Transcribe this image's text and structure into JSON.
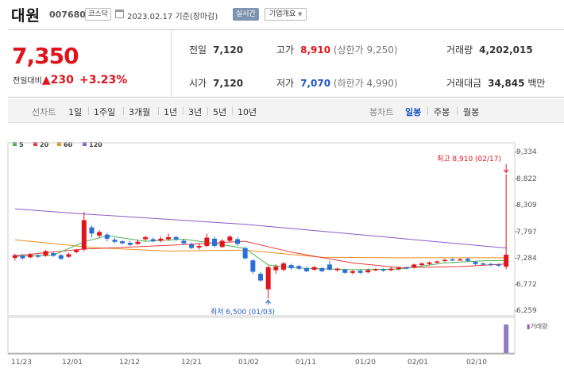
{
  "header": {
    "name": "대원",
    "code": "007680",
    "market": "코스닥",
    "date": "2023.02.17 기준(장마감)",
    "live": "실시간",
    "company_info": "기업개요"
  },
  "price": {
    "current": "7,350",
    "change_label": "전일대비",
    "change": "230",
    "change_pct": "+3.23%"
  },
  "stats": {
    "prev_label": "전일",
    "prev": "7,120",
    "open_label": "시가",
    "open": "7,120",
    "high_label": "고가",
    "high": "8,910",
    "upper_limit": "(상한가 9,250)",
    "low_label": "저가",
    "low": "7,070",
    "lower_limit": "(하한가 4,990)",
    "volume_label": "거래량",
    "volume": "4,202,015",
    "amount_label": "거래대금",
    "amount": "34,845",
    "amount_unit": "백만"
  },
  "tabs": {
    "line_label": "선차트",
    "line": [
      "1일",
      "1주일",
      "3개월",
      "1년",
      "3년",
      "5년",
      "10년"
    ],
    "candle_label": "봉차트",
    "candle": [
      "일봉",
      "주봉",
      "월봉"
    ],
    "selected": "일봉"
  },
  "legend": [
    {
      "label": "5",
      "color": "#4caf50"
    },
    {
      "label": "20",
      "color": "#e53935"
    },
    {
      "label": "60",
      "color": "#ef8c1c"
    },
    {
      "label": "120",
      "color": "#8e57c7"
    }
  ],
  "chart_data": {
    "type": "candlestick",
    "y_ticks": [
      "9,334",
      "8,822",
      "8,309",
      "7,797",
      "7,284",
      "6,772",
      "6,259"
    ],
    "ylim": [
      6259,
      9334
    ],
    "x_labels": [
      "11/23",
      "12/01",
      "12/12",
      "12/21",
      "01/02",
      "01/11",
      "01/20",
      "02/01",
      "02/10"
    ],
    "high_annotation": "최고 8,910 (02/17)",
    "low_annotation": "최저 6,500 (01/03)",
    "volume_label": "거래량",
    "candles": [
      {
        "o": 7290,
        "c": 7340,
        "h": 7370,
        "l": 7240
      },
      {
        "o": 7330,
        "c": 7280,
        "h": 7360,
        "l": 7260
      },
      {
        "o": 7300,
        "c": 7350,
        "h": 7380,
        "l": 7280
      },
      {
        "o": 7340,
        "c": 7310,
        "h": 7360,
        "l": 7290
      },
      {
        "o": 7330,
        "c": 7420,
        "h": 7440,
        "l": 7310
      },
      {
        "o": 7380,
        "c": 7330,
        "h": 7400,
        "l": 7310
      },
      {
        "o": 7340,
        "c": 7270,
        "h": 7360,
        "l": 7250
      },
      {
        "o": 7310,
        "c": 7360,
        "h": 7390,
        "l": 7290
      },
      {
        "o": 7400,
        "c": 7440,
        "h": 7460,
        "l": 7380
      },
      {
        "o": 7450,
        "c": 8020,
        "h": 8180,
        "l": 7420
      },
      {
        "o": 7880,
        "c": 7760,
        "h": 7920,
        "l": 7680
      },
      {
        "o": 7720,
        "c": 7790,
        "h": 7820,
        "l": 7690
      },
      {
        "o": 7740,
        "c": 7660,
        "h": 7770,
        "l": 7610
      },
      {
        "o": 7640,
        "c": 7600,
        "h": 7680,
        "l": 7570
      },
      {
        "o": 7610,
        "c": 7570,
        "h": 7630,
        "l": 7550
      },
      {
        "o": 7580,
        "c": 7540,
        "h": 7610,
        "l": 7520
      },
      {
        "o": 7560,
        "c": 7600,
        "h": 7640,
        "l": 7540
      },
      {
        "o": 7650,
        "c": 7690,
        "h": 7720,
        "l": 7620
      },
      {
        "o": 7650,
        "c": 7610,
        "h": 7680,
        "l": 7590
      },
      {
        "o": 7620,
        "c": 7660,
        "h": 7700,
        "l": 7590
      },
      {
        "o": 7650,
        "c": 7690,
        "h": 7760,
        "l": 7620
      },
      {
        "o": 7690,
        "c": 7650,
        "h": 7720,
        "l": 7620
      },
      {
        "o": 7620,
        "c": 7570,
        "h": 7650,
        "l": 7540
      },
      {
        "o": 7550,
        "c": 7480,
        "h": 7580,
        "l": 7460
      },
      {
        "o": 7490,
        "c": 7520,
        "h": 7570,
        "l": 7450
      },
      {
        "o": 7520,
        "c": 7680,
        "h": 7760,
        "l": 7500
      },
      {
        "o": 7660,
        "c": 7520,
        "h": 7700,
        "l": 7490
      },
      {
        "o": 7500,
        "c": 7620,
        "h": 7650,
        "l": 7480
      },
      {
        "o": 7620,
        "c": 7700,
        "h": 7730,
        "l": 7590
      },
      {
        "o": 7650,
        "c": 7560,
        "h": 7690,
        "l": 7520
      },
      {
        "o": 7480,
        "c": 7280,
        "h": 7500,
        "l": 7260
      },
      {
        "o": 7240,
        "c": 7020,
        "h": 7260,
        "l": 6980
      },
      {
        "o": 6980,
        "c": 6850,
        "h": 7020,
        "l": 6830
      },
      {
        "o": 6680,
        "c": 7110,
        "h": 7130,
        "l": 6500
      },
      {
        "o": 7050,
        "c": 7120,
        "h": 7160,
        "l": 6980
      },
      {
        "o": 7060,
        "c": 7180,
        "h": 7210,
        "l": 7030
      },
      {
        "o": 7150,
        "c": 7090,
        "h": 7180,
        "l": 7060
      },
      {
        "o": 7130,
        "c": 7080,
        "h": 7150,
        "l": 7050
      },
      {
        "o": 7090,
        "c": 7030,
        "h": 7120,
        "l": 7010
      },
      {
        "o": 7060,
        "c": 7110,
        "h": 7130,
        "l": 7040
      },
      {
        "o": 7090,
        "c": 7030,
        "h": 7110,
        "l": 7010
      },
      {
        "o": 7160,
        "c": 7060,
        "h": 7230,
        "l": 7040
      },
      {
        "o": 7050,
        "c": 7080,
        "h": 7100,
        "l": 7020
      },
      {
        "o": 7060,
        "c": 7000,
        "h": 7080,
        "l": 6980
      },
      {
        "o": 7000,
        "c": 7030,
        "h": 7050,
        "l": 6970
      },
      {
        "o": 7040,
        "c": 7000,
        "h": 7060,
        "l": 6980
      },
      {
        "o": 7010,
        "c": 7050,
        "h": 7080,
        "l": 6990
      },
      {
        "o": 7060,
        "c": 7070,
        "h": 7090,
        "l": 7030
      },
      {
        "o": 7070,
        "c": 7040,
        "h": 7090,
        "l": 7020
      },
      {
        "o": 7050,
        "c": 7080,
        "h": 7110,
        "l": 7030
      },
      {
        "o": 7070,
        "c": 7100,
        "h": 7120,
        "l": 7050
      },
      {
        "o": 7100,
        "c": 7090,
        "h": 7120,
        "l": 7070
      },
      {
        "o": 7100,
        "c": 7160,
        "h": 7180,
        "l": 7080
      },
      {
        "o": 7150,
        "c": 7180,
        "h": 7200,
        "l": 7130
      },
      {
        "o": 7170,
        "c": 7200,
        "h": 7220,
        "l": 7150
      },
      {
        "o": 7200,
        "c": 7220,
        "h": 7240,
        "l": 7180
      },
      {
        "o": 7230,
        "c": 7250,
        "h": 7270,
        "l": 7210
      },
      {
        "o": 7260,
        "c": 7240,
        "h": 7280,
        "l": 7230
      },
      {
        "o": 7250,
        "c": 7260,
        "h": 7280,
        "l": 7230
      },
      {
        "o": 7270,
        "c": 7230,
        "h": 7290,
        "l": 7210
      },
      {
        "o": 7210,
        "c": 7170,
        "h": 7230,
        "l": 7150
      },
      {
        "o": 7180,
        "c": 7170,
        "h": 7200,
        "l": 7150
      },
      {
        "o": 7170,
        "c": 7150,
        "h": 7190,
        "l": 7130
      },
      {
        "o": 7160,
        "c": 7140,
        "h": 7180,
        "l": 7120
      },
      {
        "o": 7120,
        "c": 7350,
        "h": 8910,
        "l": 7070
      }
    ],
    "ma120": [
      [
        0,
        8240
      ],
      [
        9,
        8140
      ],
      [
        30,
        7940
      ],
      [
        64,
        7480
      ]
    ],
    "ma60": [
      [
        0,
        7640
      ],
      [
        10,
        7490
      ],
      [
        20,
        7420
      ],
      [
        30,
        7440
      ],
      [
        40,
        7300
      ],
      [
        50,
        7290
      ],
      [
        64,
        7290
      ]
    ],
    "ma20": [
      [
        0,
        7330
      ],
      [
        9,
        7460
      ],
      [
        20,
        7530
      ],
      [
        30,
        7610
      ],
      [
        36,
        7400
      ],
      [
        44,
        7190
      ],
      [
        50,
        7100
      ],
      [
        58,
        7120
      ],
      [
        64,
        7170
      ]
    ],
    "ma5": [
      [
        0,
        7320
      ],
      [
        5,
        7340
      ],
      [
        9,
        7600
      ],
      [
        12,
        7720
      ],
      [
        17,
        7610
      ],
      [
        22,
        7650
      ],
      [
        26,
        7570
      ],
      [
        30,
        7470
      ],
      [
        33,
        7150
      ],
      [
        37,
        7090
      ],
      [
        44,
        7060
      ],
      [
        50,
        7070
      ],
      [
        56,
        7190
      ],
      [
        61,
        7230
      ],
      [
        64,
        7240
      ]
    ],
    "volume_last": 1.0
  }
}
